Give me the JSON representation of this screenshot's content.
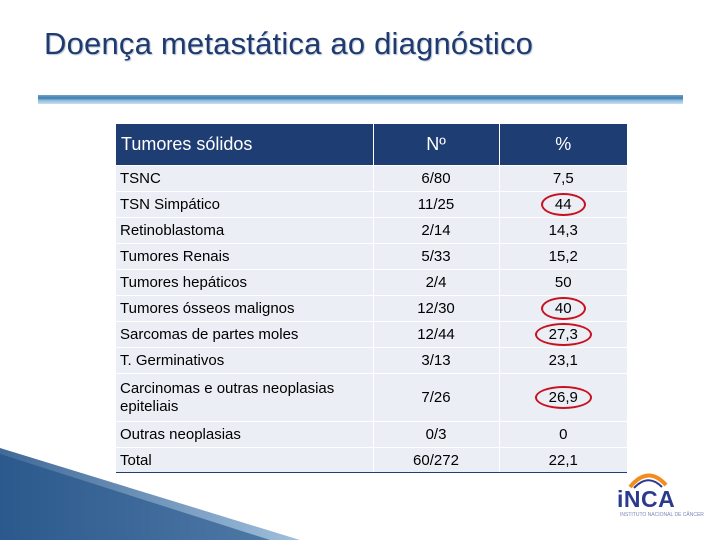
{
  "slide": {
    "title": "Doença metastática ao diagnóstico"
  },
  "table": {
    "headers": [
      "Tumores sólidos",
      "Nº",
      "%"
    ],
    "rows": [
      {
        "label": "TSNC",
        "n": "6/80",
        "pct": "7,5",
        "circled": false
      },
      {
        "label": "TSN Simpático",
        "n": "11/25",
        "pct": "44",
        "circled": true
      },
      {
        "label": "Retinoblastoma",
        "n": "2/14",
        "pct": "14,3",
        "circled": false
      },
      {
        "label": "Tumores Renais",
        "n": "5/33",
        "pct": "15,2",
        "circled": false
      },
      {
        "label": "Tumores hepáticos",
        "n": "2/4",
        "pct": "50",
        "circled": false
      },
      {
        "label": "Tumores ósseos malignos",
        "n": "12/30",
        "pct": "40",
        "circled": true
      },
      {
        "label": "Sarcomas de partes moles",
        "n": "12/44",
        "pct": "27,3",
        "circled": true
      },
      {
        "label": "T. Germinativos",
        "n": "3/13",
        "pct": "23,1",
        "circled": false
      },
      {
        "label": "Carcinomas e outras neoplasias epiteliais",
        "n": "7/26",
        "pct": "26,9",
        "circled": true,
        "tall": true
      },
      {
        "label": "Outras neoplasias",
        "n": "0/3",
        "pct": "0",
        "circled": false
      },
      {
        "label": "Total",
        "n": "60/272",
        "pct": "22,1",
        "circled": false
      }
    ]
  },
  "logo": {
    "text": "iNCA",
    "subtitle": "INSTITUTO NACIONAL DE CÂNCER"
  },
  "colors": {
    "title": "#1f3b6e",
    "header_bg": "#1e3d73",
    "row_bg": "#ebeef5",
    "highlight_circle": "#c8101e",
    "logo_blue": "#2b3a8c",
    "logo_orange": "#f28c1e",
    "wedge": "#1e4f86"
  }
}
